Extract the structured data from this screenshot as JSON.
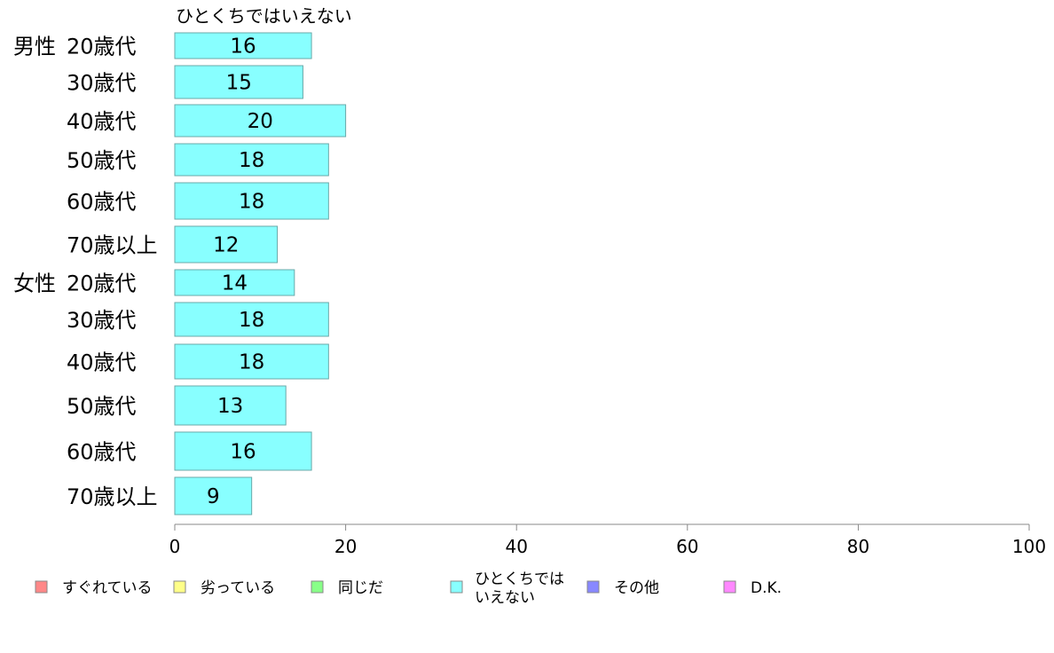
{
  "chart_data": {
    "type": "bar",
    "orientation": "horizontal",
    "series": [
      {
        "name": "ひとくちではいえない",
        "color": "#88FFFF",
        "values": [
          16,
          15,
          20,
          18,
          18,
          12,
          14,
          18,
          18,
          13,
          16,
          9
        ]
      }
    ],
    "categories": [
      {
        "group": "男性",
        "label": "20歳代"
      },
      {
        "group": "",
        "label": "30歳代"
      },
      {
        "group": "",
        "label": "40歳代"
      },
      {
        "group": "",
        "label": "50歳代"
      },
      {
        "group": "",
        "label": "60歳代"
      },
      {
        "group": "",
        "label": "70歳以上"
      },
      {
        "group": "女性",
        "label": "20歳代"
      },
      {
        "group": "",
        "label": "30歳代"
      },
      {
        "group": "",
        "label": "40歳代"
      },
      {
        "group": "",
        "label": "50歳代"
      },
      {
        "group": "",
        "label": "60歳代"
      },
      {
        "group": "",
        "label": "70歳以上"
      }
    ],
    "xlim": [
      0,
      100
    ],
    "xticks": [
      0,
      20,
      40,
      60,
      80,
      100
    ],
    "grid": false,
    "legend_position": "bottom",
    "legend": [
      {
        "lines": [
          "すぐれている"
        ],
        "color": "#FF8888"
      },
      {
        "lines": [
          "劣っている"
        ],
        "color": "#FFFF88"
      },
      {
        "lines": [
          "同じだ"
        ],
        "color": "#88FF88"
      },
      {
        "lines": [
          "ひとくちでは",
          "いえない"
        ],
        "color": "#88FFFF"
      },
      {
        "lines": [
          "その他"
        ],
        "color": "#8888FF"
      },
      {
        "lines": [
          "D.K."
        ],
        "color": "#FF88FF"
      }
    ]
  }
}
